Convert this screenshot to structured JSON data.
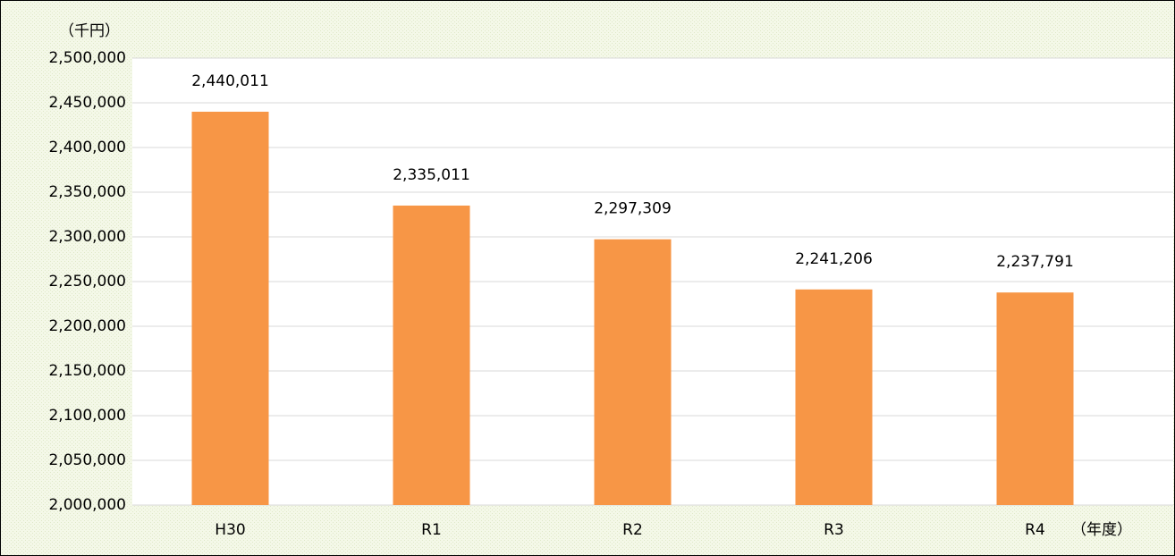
{
  "chart_data": {
    "type": "bar",
    "y_label": "（千円）",
    "x_label": "（年度）",
    "categories": [
      "H30",
      "R1",
      "R2",
      "R3",
      "R4"
    ],
    "values": [
      2440011,
      2335011,
      2297309,
      2241206,
      2237791
    ],
    "value_labels": [
      "2,440,011",
      "2,335,011",
      "2,297,309",
      "2,241,206",
      "2,237,791"
    ],
    "color": "#f79646",
    "ylim": [
      2000000,
      2500000
    ],
    "yticks": [
      {
        "value": 2000000,
        "label": "2,000,000"
      },
      {
        "value": 2050000,
        "label": "2,050,000"
      },
      {
        "value": 2100000,
        "label": "2,100,000"
      },
      {
        "value": 2150000,
        "label": "2,150,000"
      },
      {
        "value": 2200000,
        "label": "2,200,000"
      },
      {
        "value": 2250000,
        "label": "2,250,000"
      },
      {
        "value": 2300000,
        "label": "2,300,000"
      },
      {
        "value": 2350000,
        "label": "2,350,000"
      },
      {
        "value": 2400000,
        "label": "2,400,000"
      },
      {
        "value": 2450000,
        "label": "2,450,000"
      },
      {
        "value": 2500000,
        "label": "2,500,000"
      }
    ],
    "grid": true
  }
}
